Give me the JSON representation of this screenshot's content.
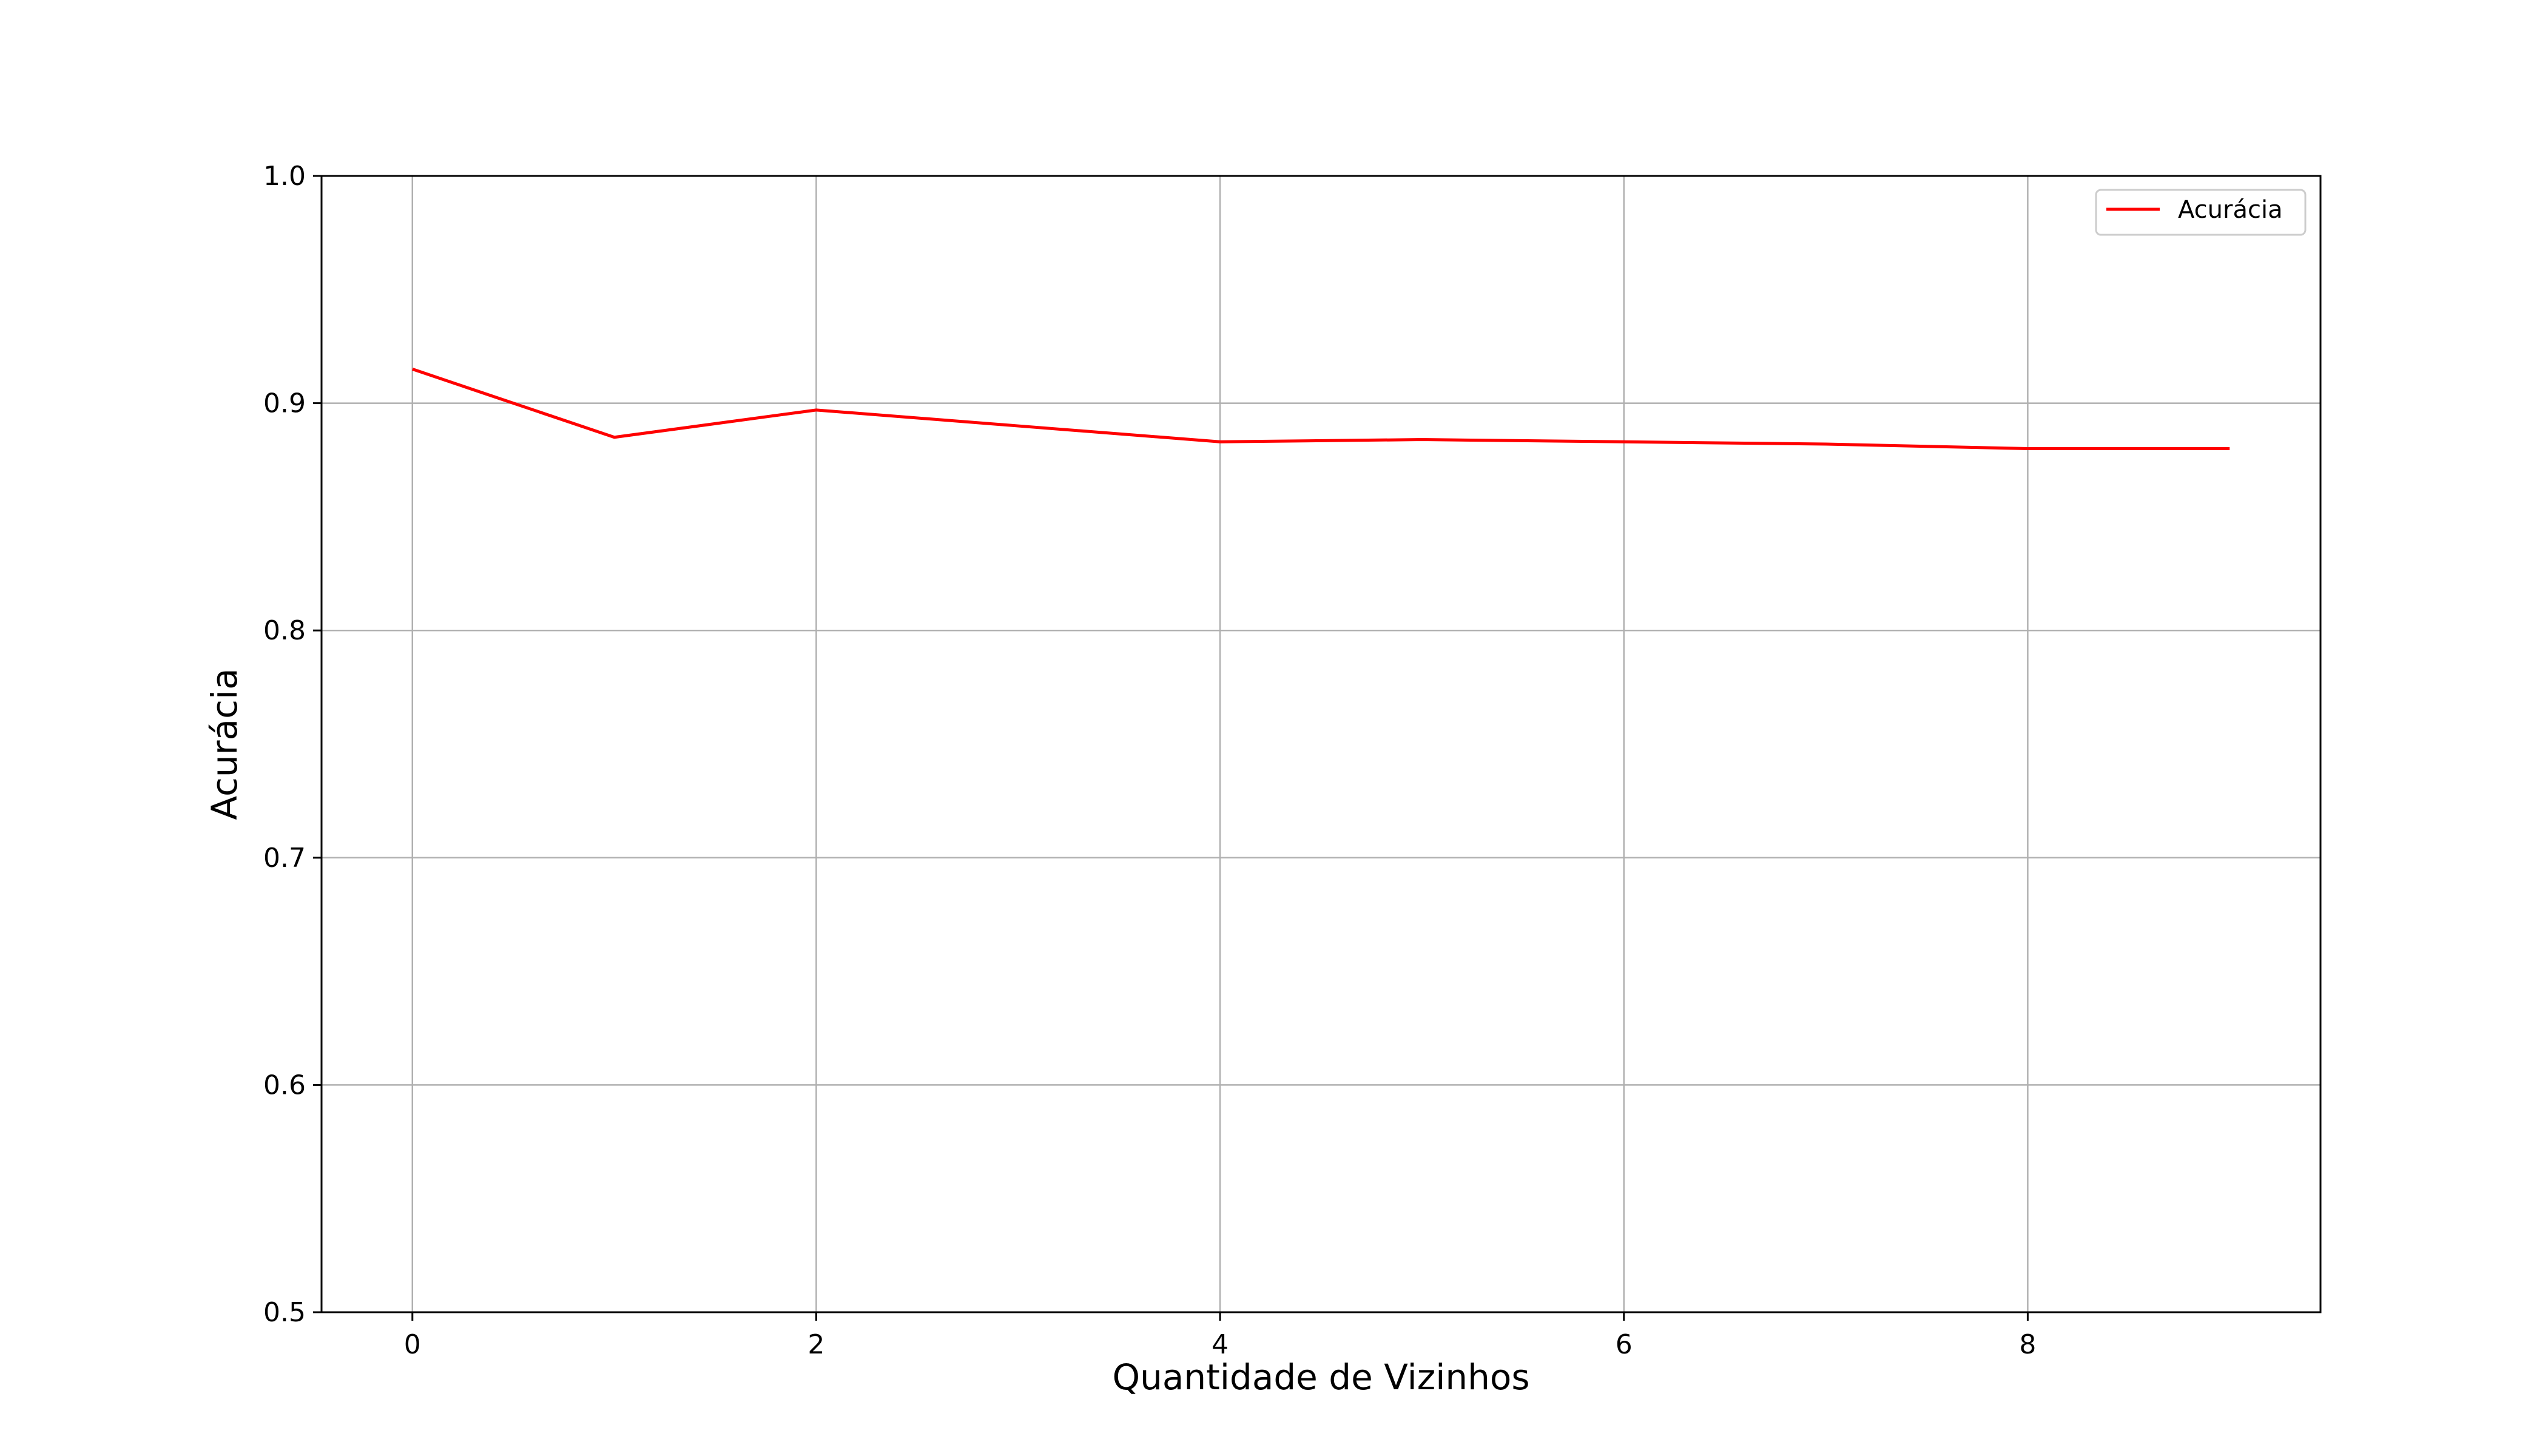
{
  "chart_data": {
    "type": "line",
    "xlabel": "Quantidade de Vizinhos",
    "ylabel": "Acurácia",
    "xlim": [
      -0.45,
      9.45
    ],
    "ylim": [
      0.5,
      1.0
    ],
    "x_ticks": [
      0,
      2,
      4,
      6,
      8
    ],
    "x_tick_labels": [
      "0",
      "2",
      "4",
      "6",
      "8"
    ],
    "y_ticks": [
      0.5,
      0.6,
      0.7,
      0.8,
      0.9,
      1.0
    ],
    "y_tick_labels": [
      "0.5",
      "0.6",
      "0.7",
      "0.8",
      "0.9",
      "1.0"
    ],
    "grid": true,
    "legend_position": "top-right",
    "series": [
      {
        "name": "Acurácia",
        "color": "#ff0000",
        "x": [
          0,
          1,
          2,
          3,
          4,
          5,
          6,
          7,
          8,
          9
        ],
        "values": [
          0.915,
          0.885,
          0.897,
          0.89,
          0.883,
          0.884,
          0.883,
          0.882,
          0.88,
          0.88
        ]
      }
    ]
  }
}
